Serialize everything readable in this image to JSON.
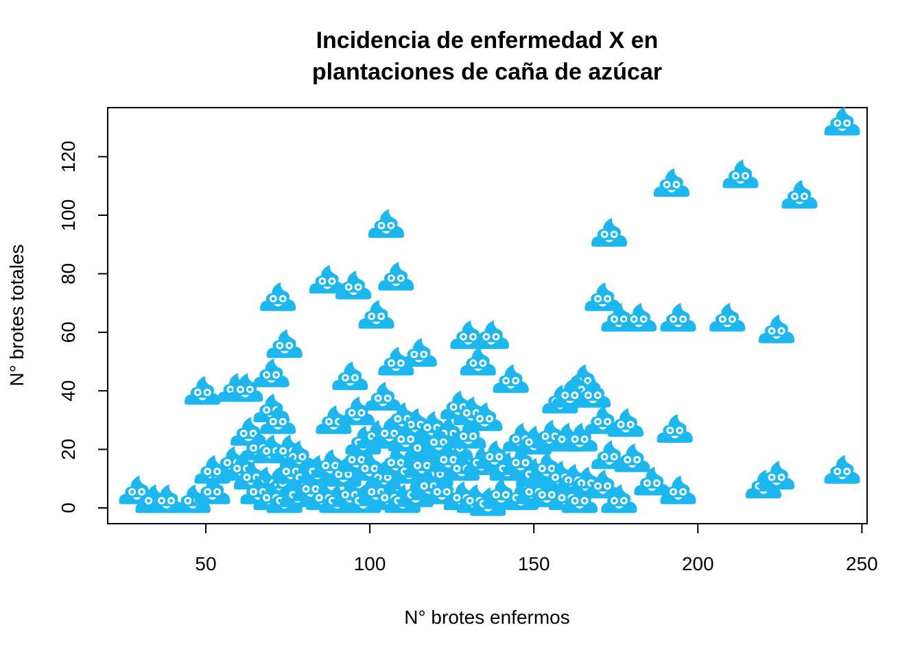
{
  "chart_data": {
    "type": "scatter",
    "title": [
      "Incidencia de enfermedad X en",
      "plantaciones de caña de azúcar"
    ],
    "xlabel": "N° brotes enfermos",
    "ylabel": "N° brotes totales",
    "xlim": [
      20,
      250
    ],
    "ylim": [
      -5,
      137
    ],
    "xticks": [
      50,
      100,
      150,
      200,
      250
    ],
    "yticks": [
      0,
      20,
      40,
      60,
      80,
      100,
      120
    ],
    "grid": false,
    "marker": "smiling-pile-emoji",
    "marker_color": "#1BB7EE",
    "points": [
      [
        244,
        131
      ],
      [
        192,
        110
      ],
      [
        213,
        113
      ],
      [
        231,
        106
      ],
      [
        173,
        93
      ],
      [
        105,
        96
      ],
      [
        108,
        78
      ],
      [
        87,
        77
      ],
      [
        95,
        75
      ],
      [
        72,
        71
      ],
      [
        102,
        65
      ],
      [
        171,
        71
      ],
      [
        176,
        64
      ],
      [
        182,
        64
      ],
      [
        194,
        64
      ],
      [
        209,
        64
      ],
      [
        224,
        60
      ],
      [
        130,
        58
      ],
      [
        137,
        58
      ],
      [
        74,
        55
      ],
      [
        115,
        52
      ],
      [
        108,
        49
      ],
      [
        133,
        49
      ],
      [
        70,
        45
      ],
      [
        94,
        44
      ],
      [
        143,
        43
      ],
      [
        49,
        39
      ],
      [
        59,
        40
      ],
      [
        62,
        40
      ],
      [
        104,
        37
      ],
      [
        165,
        43
      ],
      [
        163,
        40
      ],
      [
        168,
        38
      ],
      [
        158,
        36
      ],
      [
        161,
        38
      ],
      [
        70,
        33
      ],
      [
        72,
        29
      ],
      [
        89,
        29
      ],
      [
        96,
        32
      ],
      [
        127,
        34
      ],
      [
        131,
        32
      ],
      [
        135,
        30
      ],
      [
        110,
        30
      ],
      [
        114,
        28
      ],
      [
        119,
        27
      ],
      [
        124,
        25
      ],
      [
        171,
        29
      ],
      [
        178,
        28
      ],
      [
        193,
        26
      ],
      [
        63,
        25
      ],
      [
        66,
        20
      ],
      [
        70,
        19
      ],
      [
        75,
        19
      ],
      [
        78,
        17
      ],
      [
        98,
        22
      ],
      [
        102,
        24
      ],
      [
        106,
        25
      ],
      [
        111,
        23
      ],
      [
        116,
        20
      ],
      [
        121,
        22
      ],
      [
        126,
        20
      ],
      [
        130,
        24
      ],
      [
        146,
        23
      ],
      [
        150,
        22
      ],
      [
        155,
        24
      ],
      [
        160,
        23
      ],
      [
        164,
        23
      ],
      [
        173,
        17
      ],
      [
        180,
        16
      ],
      [
        58,
        15
      ],
      [
        61,
        13
      ],
      [
        52,
        12
      ],
      [
        64,
        10
      ],
      [
        68,
        8
      ],
      [
        72,
        8
      ],
      [
        76,
        12
      ],
      [
        80,
        10
      ],
      [
        84,
        12
      ],
      [
        88,
        14
      ],
      [
        92,
        11
      ],
      [
        96,
        16
      ],
      [
        100,
        13
      ],
      [
        104,
        10
      ],
      [
        108,
        15
      ],
      [
        112,
        12
      ],
      [
        116,
        14
      ],
      [
        120,
        11
      ],
      [
        124,
        16
      ],
      [
        128,
        13
      ],
      [
        134,
        15
      ],
      [
        138,
        17
      ],
      [
        142,
        13
      ],
      [
        146,
        15
      ],
      [
        150,
        11
      ],
      [
        154,
        13
      ],
      [
        158,
        10
      ],
      [
        162,
        9
      ],
      [
        166,
        8
      ],
      [
        171,
        7
      ],
      [
        186,
        8
      ],
      [
        220,
        7
      ],
      [
        224,
        10
      ],
      [
        244,
        12
      ],
      [
        29,
        5
      ],
      [
        34,
        2
      ],
      [
        38,
        2
      ],
      [
        46,
        2
      ],
      [
        52,
        5
      ],
      [
        66,
        5
      ],
      [
        70,
        3
      ],
      [
        74,
        2
      ],
      [
        78,
        4
      ],
      [
        82,
        6
      ],
      [
        86,
        3
      ],
      [
        90,
        2
      ],
      [
        94,
        4
      ],
      [
        98,
        2
      ],
      [
        102,
        5
      ],
      [
        106,
        3
      ],
      [
        110,
        2
      ],
      [
        114,
        4
      ],
      [
        118,
        7
      ],
      [
        122,
        5
      ],
      [
        128,
        3
      ],
      [
        132,
        2
      ],
      [
        136,
        1
      ],
      [
        140,
        4
      ],
      [
        146,
        3
      ],
      [
        150,
        5
      ],
      [
        154,
        4
      ],
      [
        160,
        3
      ],
      [
        164,
        2
      ],
      [
        176,
        2
      ],
      [
        194,
        5
      ]
    ]
  }
}
